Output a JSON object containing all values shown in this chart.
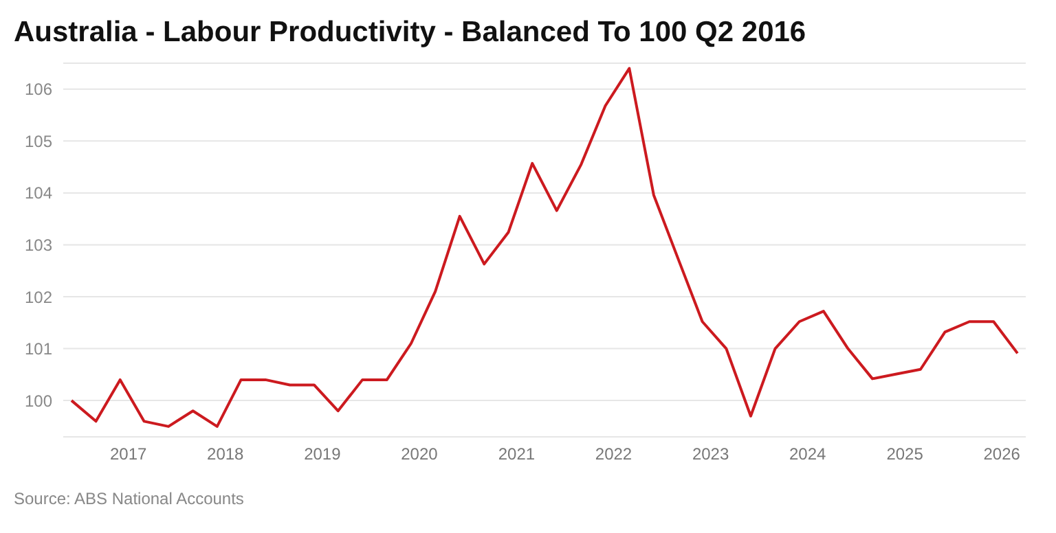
{
  "chart_data": {
    "type": "line",
    "title": "Australia - Labour Productivity - Balanced To 100 Q2 2016",
    "annotations": [
      "Source: ABS National Accounts"
    ],
    "x": [
      "2016-06",
      "2016-09",
      "2016-12",
      "2017-03",
      "2017-06",
      "2017-09",
      "2017-12",
      "2018-03",
      "2018-06",
      "2018-09",
      "2018-12",
      "2019-03",
      "2019-06",
      "2019-09",
      "2019-12",
      "2020-03",
      "2020-06",
      "2020-09",
      "2020-12",
      "2021-03",
      "2021-06",
      "2021-09",
      "2021-12",
      "2022-03",
      "2022-06",
      "2022-09",
      "2022-12",
      "2023-03",
      "2023-06",
      "2023-09",
      "2023-12",
      "2024-03",
      "2024-06",
      "2024-09",
      "2024-12",
      "2025-03",
      "2025-06",
      "2025-09",
      "2025-12",
      "2026-03"
    ],
    "series": [
      {
        "color": "#cc1a1f",
        "values": [
          100.0,
          99.6,
          100.4,
          99.6,
          99.5,
          99.8,
          99.5,
          100.4,
          100.4,
          100.3,
          100.3,
          99.8,
          100.4,
          100.4,
          101.1,
          102.1,
          103.55,
          102.63,
          103.24,
          104.57,
          103.66,
          104.55,
          105.68,
          106.4,
          103.96,
          102.73,
          101.52,
          101.0,
          99.7,
          101.0,
          101.52,
          101.72,
          101.0,
          100.42,
          100.51,
          100.6,
          101.32,
          101.52,
          101.52,
          100.91
        ]
      }
    ],
    "xlim": [
      "2016-05",
      "2026-04"
    ],
    "xticks": [
      "2017",
      "2018",
      "2019",
      "2020",
      "2021",
      "2022",
      "2023",
      "2024",
      "2025",
      "2026"
    ],
    "ylim": [
      99.3,
      106.5
    ],
    "yticks": [
      100,
      101,
      102,
      103,
      104,
      105,
      106
    ],
    "grid": "y",
    "legend": false,
    "marker": "none",
    "line_style": "solid"
  }
}
